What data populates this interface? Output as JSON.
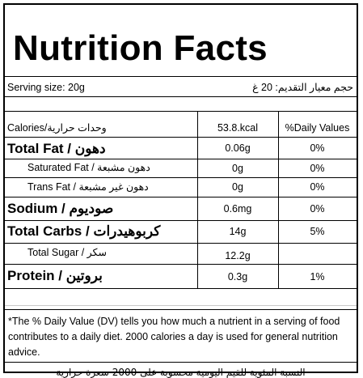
{
  "title": "Nutrition Facts",
  "serving": {
    "label_en": "Serving size: 20g",
    "label_ar": "حجم معيار التقديم: 20 غ"
  },
  "header": {
    "calories_label": "Calories/وحدات حرارية",
    "calories_value": "53.8.kcal",
    "daily_values": "%Daily Values"
  },
  "rows": [
    {
      "label": "Total Fat / دهون",
      "amount": "0.06g",
      "dv": "0%"
    },
    {
      "label": "Saturated Fat / دهون مشبعة",
      "amount": "0g",
      "dv": "0%"
    },
    {
      "label": "Trans Fat / دهون غير مشبعة",
      "amount": "0g",
      "dv": "0%"
    },
    {
      "label": "Sodium / صوديوم",
      "amount": "0.6mg",
      "dv": "0%"
    },
    {
      "label": "Total Carbs / كربوهيدرات",
      "amount": "14g",
      "dv": "5%"
    },
    {
      "label": "Total Sugar / سكر",
      "amount": "12.2g",
      "dv": ""
    },
    {
      "label": "Protein / بروتين",
      "amount": "0.3g",
      "dv": "1%"
    }
  ],
  "footnote": "*The % Daily Value (DV) tells you how much a nutrient in a serving of food contributes to a daily diet. 2000 calories a day is used for general nutrition advice.",
  "footnote_ar": "النسبة المئوية للقيم اليومية محسوبة على 2000 سعرة حرارية"
}
